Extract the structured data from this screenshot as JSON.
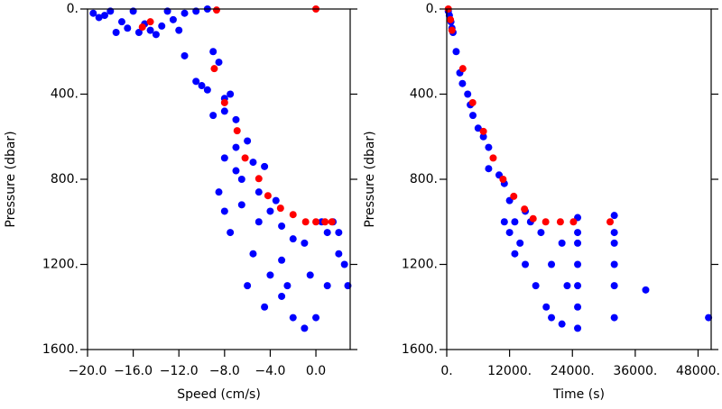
{
  "chart_data": [
    {
      "type": "scatter",
      "xlabel": "Speed (cm/s)",
      "ylabel": "Pressure (dbar)",
      "xlim": [
        -20,
        3
      ],
      "ylim": [
        0,
        1600
      ],
      "y_inverted": true,
      "xticks": [
        {
          "value": -20,
          "label": "−20.0"
        },
        {
          "value": -16,
          "label": "−16.0"
        },
        {
          "value": -12,
          "label": "−12.0"
        },
        {
          "value": -8,
          "label": "−8.0"
        },
        {
          "value": -4,
          "label": "−4.0"
        },
        {
          "value": 0,
          "label": "0.0"
        }
      ],
      "yticks": [
        {
          "value": 0,
          "label": "0."
        },
        {
          "value": 400,
          "label": "400."
        },
        {
          "value": 800,
          "label": "800."
        },
        {
          "value": 1200,
          "label": "1200."
        },
        {
          "value": 1600,
          "label": "1600."
        }
      ],
      "series": [
        {
          "color": "#0000ff",
          "x": [
            -19.5,
            -19,
            -18.5,
            -17,
            -16.5,
            -15.5,
            -14.5,
            -13.5,
            -12.5,
            -11.5,
            -10.5,
            -9.5,
            -13,
            -16,
            -18,
            -14,
            -15,
            -12,
            -17.5,
            -11.5,
            -9,
            -8.5,
            -10.5,
            -10,
            -9.5,
            -8,
            -7.5,
            -9,
            -8,
            -7,
            -7,
            -8,
            -6,
            -5.5,
            -7,
            -8.5,
            -8,
            -7.5,
            -6.5,
            -5,
            -4,
            -3,
            -2,
            -5.5,
            -4,
            -3,
            -2,
            -1,
            0,
            1,
            2,
            2.5,
            2.8,
            1,
            0.5,
            -1,
            -0.5,
            -3,
            -6,
            -4.5,
            -2.5,
            1.5,
            2,
            -6.5,
            -5,
            -4.5,
            -3.5
          ],
          "values": [
            20,
            40,
            30,
            60,
            90,
            110,
            100,
            80,
            50,
            20,
            10,
            0,
            10,
            10,
            10,
            120,
            70,
            100,
            110,
            220,
            200,
            250,
            340,
            360,
            380,
            420,
            400,
            500,
            480,
            520,
            650,
            700,
            620,
            720,
            760,
            860,
            950,
            1050,
            920,
            1000,
            950,
            1020,
            1080,
            1150,
            1250,
            1350,
            1450,
            1500,
            1450,
            1300,
            1150,
            1200,
            1300,
            1050,
            1000,
            1100,
            1250,
            1180,
            1300,
            1400,
            1300,
            1000,
            1050,
            800,
            860,
            740,
            900
          ]
        },
        {
          "color": "#ff0000",
          "x": [
            0,
            -8.7,
            -15.2,
            -14.5,
            -8.9,
            -8,
            -6.9,
            -6.2,
            -5,
            -4.2,
            -3.1,
            -2,
            -0.9,
            0,
            0.8,
            1.4
          ],
          "values": [
            0,
            5,
            85,
            60,
            280,
            440,
            572,
            700,
            797,
            877,
            936,
            966,
            1000,
            1000,
            1000,
            1000
          ]
        }
      ]
    },
    {
      "type": "scatter",
      "xlabel": "Time (s)",
      "ylabel": "Pressure (dbar)",
      "xlim": [
        0,
        50500
      ],
      "ylim": [
        0,
        1600
      ],
      "y_inverted": true,
      "xticks": [
        {
          "value": 0,
          "label": "0."
        },
        {
          "value": 12000,
          "label": "12000."
        },
        {
          "value": 24000,
          "label": "24000."
        },
        {
          "value": 36000,
          "label": "36000."
        },
        {
          "value": 48000,
          "label": "48000."
        }
      ],
      "yticks": [
        {
          "value": 0,
          "label": "0."
        },
        {
          "value": 400,
          "label": "400."
        },
        {
          "value": 800,
          "label": "800."
        },
        {
          "value": 1200,
          "label": "1200."
        },
        {
          "value": 1600,
          "label": "1600."
        }
      ],
      "series": [
        {
          "color": "#0000ff",
          "x": [
            1800,
            2500,
            3000,
            4000,
            4500,
            5000,
            6000,
            7000,
            8000,
            8000,
            10000,
            11000,
            12000,
            12000,
            13000,
            14000,
            15000,
            17000,
            19000,
            20000,
            22000,
            25000,
            25000,
            25000,
            25000,
            25000,
            25000,
            25000,
            22000,
            18000,
            16000,
            20000,
            23000,
            32000,
            32000,
            32000,
            32000,
            32000,
            32000,
            38000,
            50000,
            500,
            800,
            1000,
            1200,
            300,
            15000,
            11000,
            13000
          ],
          "values": [
            200,
            300,
            350,
            400,
            450,
            500,
            560,
            600,
            650,
            750,
            780,
            820,
            900,
            1050,
            1000,
            1100,
            1200,
            1300,
            1400,
            1450,
            1480,
            1500,
            1400,
            1300,
            1200,
            1100,
            1050,
            980,
            1100,
            1050,
            1000,
            1200,
            1300,
            970,
            1050,
            1100,
            1200,
            1300,
            1450,
            1320,
            1450,
            30,
            60,
            90,
            110,
            10,
            950,
            1000,
            1150
          ]
        },
        {
          "color": "#ff0000",
          "x": [
            300,
            700,
            1000,
            3070,
            4950,
            7000,
            8870,
            10750,
            12800,
            14850,
            16500,
            18900,
            21700,
            24200,
            31200
          ],
          "values": [
            0,
            50,
            100,
            280,
            440,
            575,
            700,
            800,
            880,
            940,
            985,
            1000,
            1000,
            1000,
            1000
          ]
        }
      ]
    }
  ]
}
